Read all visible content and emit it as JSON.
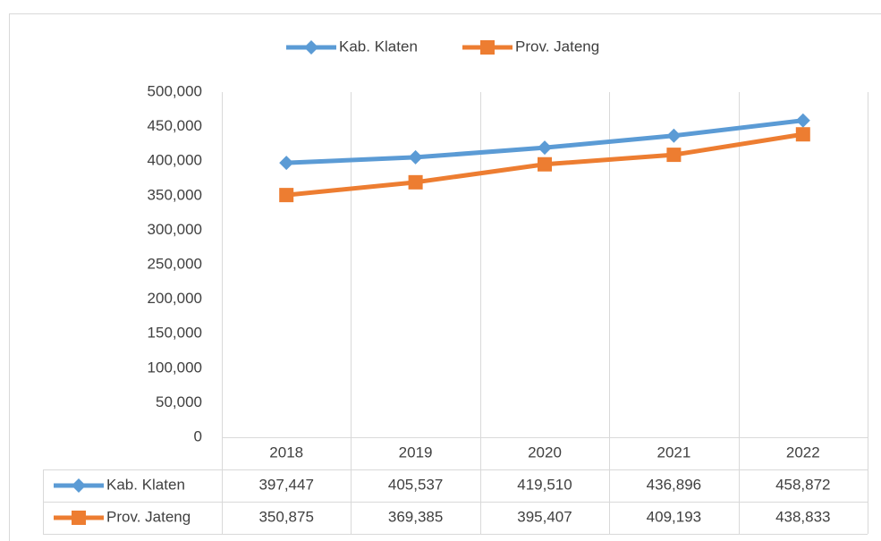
{
  "chart_data": {
    "type": "line",
    "categories": [
      "2018",
      "2019",
      "2020",
      "2021",
      "2022"
    ],
    "series": [
      {
        "name": "Kab. Klaten",
        "color": "#5b9bd5",
        "marker": "diamond",
        "values": [
          397447,
          405537,
          419510,
          436896,
          458872
        ],
        "value_labels": [
          "397,447",
          "405,537",
          "419,510",
          "436,896",
          "458,872"
        ]
      },
      {
        "name": "Prov. Jateng",
        "color": "#ed7d31",
        "marker": "square",
        "values": [
          350875,
          369385,
          395407,
          409193,
          438833
        ],
        "value_labels": [
          "350,875",
          "369,385",
          "395,407",
          "409,193",
          "438,833"
        ]
      }
    ],
    "ylim": [
      0,
      500000
    ],
    "yticks": [
      0,
      {
        "value": 50000,
        "label": "50,000"
      },
      {
        "value": 100000,
        "label": "100,000"
      },
      {
        "value": 150000,
        "label": "150,000"
      },
      {
        "value": 200000,
        "label": "200,000"
      },
      {
        "value": 250000,
        "label": "250,000"
      },
      {
        "value": 300000,
        "label": "300,000"
      },
      {
        "value": 350000,
        "label": "350,000"
      },
      {
        "value": 400000,
        "label": "400,000"
      },
      {
        "value": 450000,
        "label": "450,000"
      },
      {
        "value": 500000,
        "label": "500,000"
      }
    ],
    "grid": true,
    "legend": "top",
    "data_table": true
  }
}
